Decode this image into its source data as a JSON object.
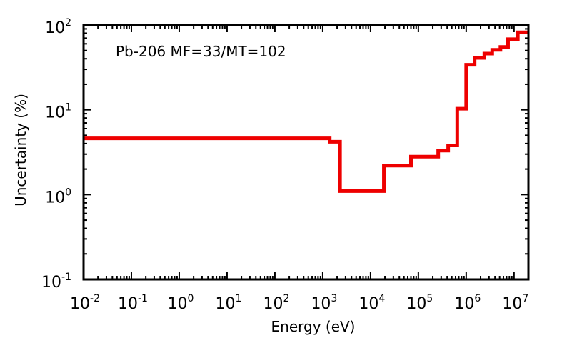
{
  "chart_data": {
    "type": "line",
    "step": true,
    "title": "",
    "annotation": "Pb-206 MF=33/MT=102",
    "xlabel": "Energy (eV)",
    "ylabel": "Uncertainty (%)",
    "xscale": "log",
    "yscale": "log",
    "xlim": [
      0.01,
      20000000
    ],
    "ylim": [
      0.1,
      100
    ],
    "x_ticks": [
      {
        "base": "10",
        "exp": "-2"
      },
      {
        "base": "10",
        "exp": "-1"
      },
      {
        "base": "10",
        "exp": "0"
      },
      {
        "base": "10",
        "exp": "1"
      },
      {
        "base": "10",
        "exp": "2"
      },
      {
        "base": "10",
        "exp": "3"
      },
      {
        "base": "10",
        "exp": "4"
      },
      {
        "base": "10",
        "exp": "5"
      },
      {
        "base": "10",
        "exp": "6"
      },
      {
        "base": "10",
        "exp": "7"
      }
    ],
    "y_ticks": [
      {
        "base": "10",
        "exp": "-1"
      },
      {
        "base": "10",
        "exp": "0"
      },
      {
        "base": "10",
        "exp": "1"
      },
      {
        "base": "10",
        "exp": "2"
      }
    ],
    "grid": false,
    "line_color": "#ee0000",
    "series": [
      {
        "x": [
          0.01,
          1400,
          2300,
          19000,
          70000,
          260000,
          420000,
          650000,
          1000000,
          1500000,
          2400000,
          3500000,
          5200000,
          7500000,
          12000000,
          20000000
        ],
        "y": [
          4.6,
          4.2,
          1.1,
          2.2,
          2.8,
          3.3,
          3.8,
          10.3,
          34,
          41,
          46,
          51,
          55,
          68,
          82,
          82
        ]
      }
    ]
  }
}
